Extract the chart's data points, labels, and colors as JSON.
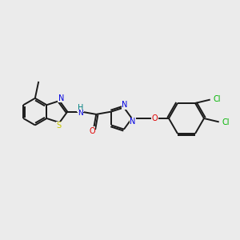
{
  "bg_color": "#ebebeb",
  "bond_color": "#1a1a1a",
  "atom_colors": {
    "N": "#0000e0",
    "S": "#c8c800",
    "O": "#e00000",
    "Cl": "#00b400",
    "C": "#1a1a1a",
    "H": "#008080"
  },
  "figsize": [
    3.0,
    3.0
  ],
  "dpi": 100,
  "lw": 1.4,
  "fontsize": 7.0
}
